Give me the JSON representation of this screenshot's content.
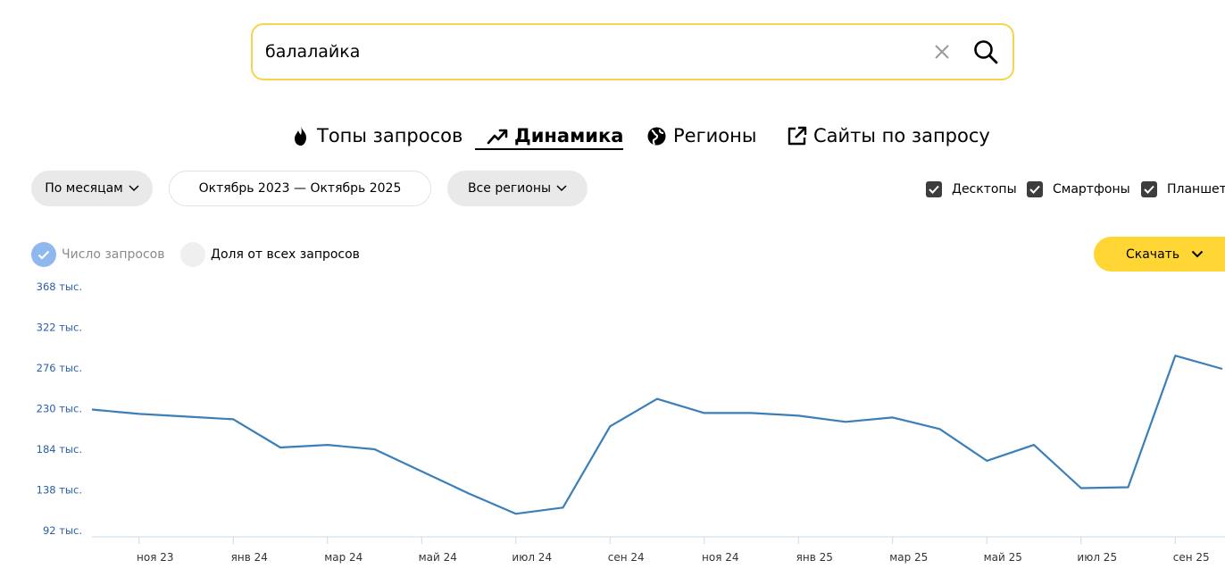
{
  "search": {
    "value": "балалайка",
    "clear_icon": "close-icon",
    "search_icon": "search-icon"
  },
  "tabs": [
    {
      "label": "Топы запросов",
      "icon": "flame-icon",
      "active": false
    },
    {
      "label": "Динамика",
      "icon": "trend-up-icon",
      "active": true
    },
    {
      "label": "Регионы",
      "icon": "globe-icon",
      "active": false
    },
    {
      "label": "Сайты по запросу",
      "icon": "external-link-icon",
      "active": false
    }
  ],
  "filters": {
    "period": "По месяцам",
    "date_range": "Октябрь 2023 — Октябрь 2025",
    "region": "Все регионы"
  },
  "devices": [
    {
      "label": "Десктопы",
      "checked": true
    },
    {
      "label": "Смартфоны",
      "checked": true
    },
    {
      "label": "Планшеты",
      "checked": true
    }
  ],
  "metric_toggle": {
    "count_label": "Число запросов",
    "share_label": "Доля от всех запросов",
    "selected": "count"
  },
  "download_label": "Скачать",
  "colors": {
    "accent_yellow": "#ffd633",
    "search_border": "#f5d54b",
    "line": "#3a7fb8",
    "tick_label": "#2b5fa8"
  },
  "chart_data": {
    "type": "line",
    "x": [
      "окт 23",
      "ноя 23",
      "дек 23",
      "янв 24",
      "фев 24",
      "мар 24",
      "апр 24",
      "май 24",
      "июн 24",
      "июл 24",
      "авг 24",
      "сен 24",
      "окт 24",
      "ноя 24",
      "дек 24",
      "янв 25",
      "фев 25",
      "мар 25",
      "апр 25",
      "май 25",
      "июн 25",
      "июл 25",
      "авг 25",
      "сен 25",
      "окт 25"
    ],
    "x_tick_labels": [
      "ноя 23",
      "янв 24",
      "мар 24",
      "май 24",
      "июл 24",
      "сен 24",
      "ноя 24",
      "янв 25",
      "мар 25",
      "май 25",
      "июл 25",
      "сен 25"
    ],
    "y_tick_labels": [
      "368 тыс.",
      "322 тыс.",
      "276 тыс.",
      "230 тыс.",
      "184 тыс.",
      "138 тыс.",
      "92 тыс."
    ],
    "y_ticks": [
      368000,
      322000,
      276000,
      230000,
      184000,
      138000,
      92000
    ],
    "ylim": [
      86000,
      372000
    ],
    "series": [
      {
        "values": [
          229000,
          224000,
          221000,
          218000,
          186000,
          189000,
          184000,
          159000,
          134000,
          111000,
          118000,
          210000,
          241000,
          225000,
          225000,
          222000,
          215000,
          220000,
          207000,
          171000,
          189000,
          140000,
          141000,
          290000,
          275000
        ]
      }
    ],
    "grid": false
  }
}
